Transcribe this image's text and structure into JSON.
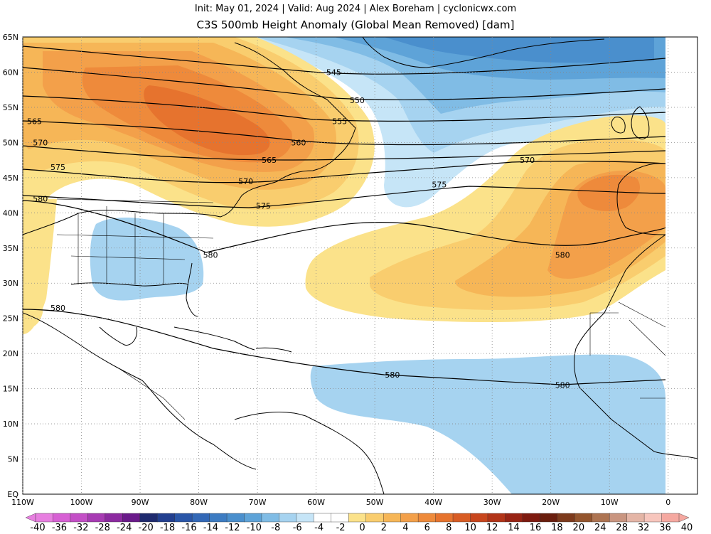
{
  "header": {
    "line1": "Init: May 01, 2024 | Valid: Aug 2024 | Alex Boreham | cyclonicwx.com",
    "title": "C3S 500mb Height Anomaly (Global Mean Removed) [dam]"
  },
  "map": {
    "lon_range": [
      -110,
      5
    ],
    "lat_range": [
      0,
      65
    ],
    "lon_ticks": [
      "110W",
      "100W",
      "90W",
      "80W",
      "70W",
      "60W",
      "50W",
      "40W",
      "30W",
      "20W",
      "10W",
      "0"
    ],
    "lat_ticks": [
      "EQ",
      "5N",
      "10N",
      "15N",
      "20N",
      "25N",
      "30N",
      "35N",
      "40N",
      "45N",
      "50N",
      "55N",
      "60N",
      "65N"
    ],
    "contour_labels": [
      {
        "text": "545",
        "lon": -57,
        "lat": 60
      },
      {
        "text": "550",
        "lon": -53,
        "lat": 56
      },
      {
        "text": "555",
        "lon": -56,
        "lat": 53
      },
      {
        "text": "560",
        "lon": -63,
        "lat": 50
      },
      {
        "text": "565",
        "lon": -108,
        "lat": 53
      },
      {
        "text": "565",
        "lon": -68,
        "lat": 47.5
      },
      {
        "text": "570",
        "lon": -107,
        "lat": 50
      },
      {
        "text": "570",
        "lon": -72,
        "lat": 44.5
      },
      {
        "text": "570",
        "lon": -24,
        "lat": 47.5
      },
      {
        "text": "575",
        "lon": -104,
        "lat": 46.5
      },
      {
        "text": "575",
        "lon": -69,
        "lat": 41
      },
      {
        "text": "575",
        "lon": -39,
        "lat": 44
      },
      {
        "text": "580",
        "lon": -107,
        "lat": 42
      },
      {
        "text": "580",
        "lon": -78,
        "lat": 34
      },
      {
        "text": "580",
        "lon": -18,
        "lat": 34
      },
      {
        "text": "580",
        "lon": -104,
        "lat": 26.5
      },
      {
        "text": "580",
        "lon": -47,
        "lat": 17
      },
      {
        "text": "580",
        "lon": -18,
        "lat": 15.5
      }
    ]
  },
  "colorbar": {
    "labels": [
      "-40",
      "-36",
      "-32",
      "-28",
      "-24",
      "-20",
      "-18",
      "-16",
      "-14",
      "-12",
      "-10",
      "-8",
      "-6",
      "-4",
      "-2",
      "0",
      "2",
      "4",
      "6",
      "8",
      "10",
      "12",
      "14",
      "16",
      "18",
      "20",
      "24",
      "28",
      "32",
      "36",
      "40"
    ],
    "colors": [
      "#e77fe0",
      "#d760d4",
      "#c34fc6",
      "#a73bb3",
      "#8c2aa0",
      "#6a1a8a",
      "#1e2a6e",
      "#223f8f",
      "#2a56a8",
      "#3368b6",
      "#3d7cc2",
      "#4a8fcd",
      "#5ea3d8",
      "#80bce5",
      "#a6d3f0",
      "#c6e5f7",
      "#ffffff",
      "#ffffff",
      "#fbe28a",
      "#f9cd6e",
      "#f6b657",
      "#f3a04a",
      "#ee8a3b",
      "#e6732e",
      "#d85c24",
      "#c8461d",
      "#b23418",
      "#982414",
      "#7e1a10",
      "#6a1e0e",
      "#7d3a1c",
      "#94552e",
      "#ad7452",
      "#c99580",
      "#e4b5a6",
      "#f7c6bd",
      "#f5a8a0"
    ]
  }
}
